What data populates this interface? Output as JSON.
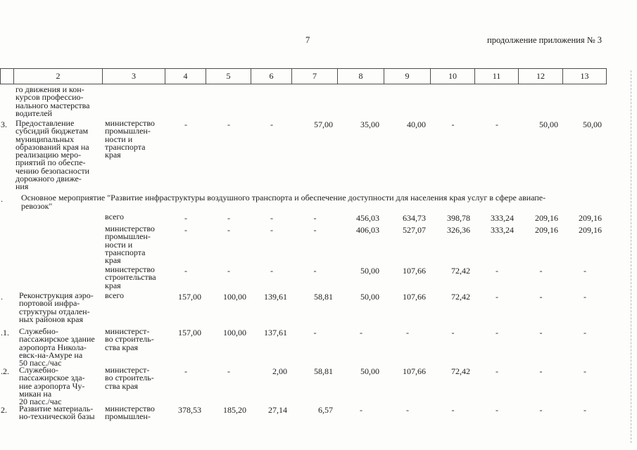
{
  "page": {
    "number": "7",
    "header_right": "продолжение приложения № 3"
  },
  "table": {
    "header_cells": [
      "",
      "2",
      "3",
      "4",
      "5",
      "6",
      "7",
      "8",
      "9",
      "10",
      "11",
      "12",
      "13"
    ],
    "rows": [
      {
        "type": "continuation",
        "num": "",
        "name_lines": [
          "го движения и кон-",
          "курсов профессио-",
          "нального мастерства",
          "водителей"
        ]
      },
      {
        "type": "data",
        "num": "3.",
        "name_lines": [
          "Предоставление",
          "субсидий бюджетам",
          "муниципальных",
          "образований края на",
          "реализацию меро-",
          "приятий по обеспе-",
          "чению безопасности",
          "дорожного движе-",
          "ния"
        ],
        "executor_lines": [
          "министерство",
          "промышлен-",
          "ности и",
          "транспорта",
          "края"
        ],
        "values": [
          "-",
          "-",
          "-",
          "57,00",
          "35,00",
          "40,00",
          "-",
          "-",
          "50,00",
          "50,00"
        ]
      },
      {
        "type": "section",
        "num": ".",
        "text_lines": [
          "Основное мероприятие \"Развитие инфраструктуры воздушного транспорта и обеспечение доступности для населения края услуг в сфере авиапе-",
          "ревозок\""
        ]
      },
      {
        "type": "data",
        "num": "",
        "name_lines": [],
        "executor_lines": [
          "всего"
        ],
        "values": [
          "-",
          "-",
          "-",
          "-",
          "456,03",
          "634,73",
          "398,78",
          "333,24",
          "209,16",
          "209,16"
        ]
      },
      {
        "type": "data",
        "num": "",
        "name_lines": [],
        "executor_lines": [
          "министерство",
          "промышлен-",
          "ности и",
          "транспорта",
          "края"
        ],
        "values": [
          "-",
          "-",
          "-",
          "-",
          "406,03",
          "527,07",
          "326,36",
          "333,24",
          "209,16",
          "209,16"
        ]
      },
      {
        "type": "data",
        "num": "",
        "name_lines": [],
        "executor_lines": [
          "министерство",
          "строительства",
          "края"
        ],
        "values": [
          "-",
          "-",
          "-",
          "-",
          "50,00",
          "107,66",
          "72,42",
          "-",
          "-",
          "-"
        ]
      },
      {
        "type": "data",
        "num": ".",
        "name_lines": [
          "Реконструкция аэро-",
          "портовой инфра-",
          "структуры отдален-",
          "ных районов края"
        ],
        "executor_lines": [
          "всего"
        ],
        "values": [
          "157,00",
          "100,00",
          "139,61",
          "58,81",
          "50,00",
          "107,66",
          "72,42",
          "-",
          "-",
          "-"
        ]
      },
      {
        "type": "data",
        "num": ".1.",
        "name_lines": [
          "Служебно-",
          "пассажирское здание",
          "аэропорта Никола-",
          "евск-на-Амуре на",
          "50 пасс./час"
        ],
        "executor_lines": [
          "министерст-",
          "во строитель-",
          "ства края"
        ],
        "values": [
          "157,00",
          "100,00",
          "137,61",
          "-",
          "-",
          "-",
          "-",
          "-",
          "-",
          "-"
        ]
      },
      {
        "type": "data",
        "num": ".2.",
        "name_lines": [
          "Служебно-",
          "пассажирское зда-",
          "ние аэропорта Чу-",
          "микан на",
          "20 пасс./час"
        ],
        "executor_lines": [
          "министерст-",
          "во строитель-",
          "ства края"
        ],
        "values": [
          "-",
          "-",
          "2,00",
          "58,81",
          "50,00",
          "107,66",
          "72,42",
          "-",
          "-",
          "-"
        ]
      },
      {
        "type": "data",
        "num": "2.",
        "name_lines": [
          "Развитие материаль-",
          "но-технической базы"
        ],
        "executor_lines": [
          "министерство",
          "промышлен-"
        ],
        "values": [
          "378,53",
          "185,20",
          "27,14",
          "6,57",
          "-",
          "-",
          "-",
          "-",
          "-",
          "-"
        ]
      }
    ]
  }
}
